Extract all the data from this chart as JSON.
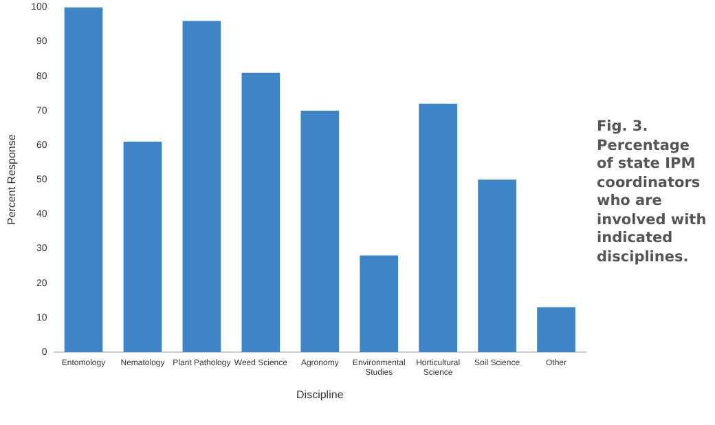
{
  "chart_data": {
    "type": "bar",
    "xlabel": "Discipline",
    "ylabel": "Percent Response",
    "categories": [
      "Entomology",
      "Nematology",
      "Plant Pathology",
      "Weed Science",
      "Agronomy",
      "Environmental Studies",
      "Horticultural Science",
      "Soil Science",
      "Other"
    ],
    "values": [
      100,
      61,
      96,
      81,
      70,
      28,
      72,
      50,
      13
    ],
    "color": "#3d85c6",
    "ylim": [
      0,
      100
    ],
    "yticks": [
      0,
      10,
      20,
      30,
      40,
      50,
      60,
      70,
      80,
      90,
      100
    ],
    "grid": false,
    "legend": false,
    "annotations": [
      "Fig. 3. Percentage of state IPM coordinators who are involved with indicated disciplines."
    ]
  }
}
